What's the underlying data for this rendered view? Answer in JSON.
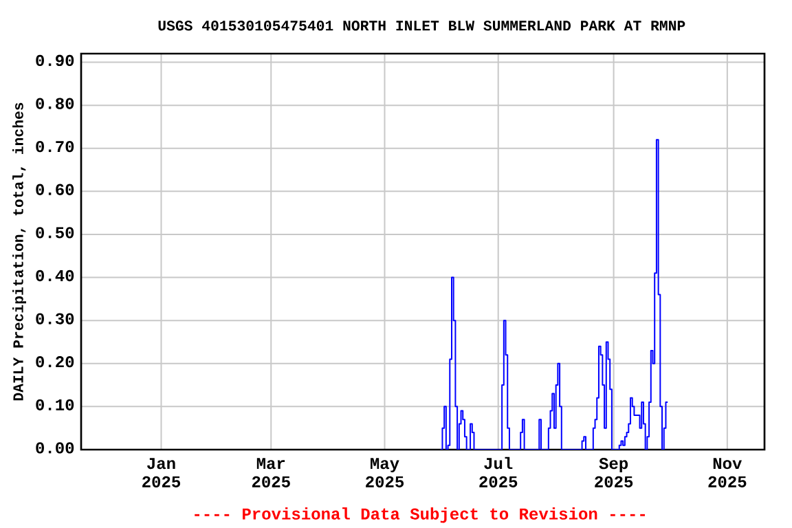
{
  "chart_data": {
    "type": "step",
    "title": "USGS 401530105475401 NORTH INLET BLW SUMMERLAND PARK AT RMNP",
    "ylabel": "DAILY Precipitation, total, inches",
    "annotations": [
      "---- Provisional Data Subject to Revision ----"
    ],
    "xlim": [
      "2024-11-19",
      "2025-11-21"
    ],
    "ylim": [
      0,
      0.92
    ],
    "xticks": [
      {
        "value": "2025-01-01",
        "label": "Jan 2025"
      },
      {
        "value": "2025-03-01",
        "label": "Mar 2025"
      },
      {
        "value": "2025-05-01",
        "label": "May 2025"
      },
      {
        "value": "2025-07-01",
        "label": "Jul 2025"
      },
      {
        "value": "2025-09-01",
        "label": "Sep 2025"
      },
      {
        "value": "2025-11-01",
        "label": "Nov 2025"
      }
    ],
    "yticks": [
      {
        "value": 0,
        "label": "0.00"
      },
      {
        "value": 0.1,
        "label": "0.10"
      },
      {
        "value": 0.2,
        "label": "0.20"
      },
      {
        "value": 0.3,
        "label": "0.30"
      },
      {
        "value": 0.4,
        "label": "0.40"
      },
      {
        "value": 0.5,
        "label": "0.50"
      },
      {
        "value": 0.6,
        "label": "0.60"
      },
      {
        "value": 0.7,
        "label": "0.70"
      },
      {
        "value": 0.8,
        "label": "0.80"
      },
      {
        "value": 0.9,
        "label": "0.90"
      }
    ],
    "grid": true,
    "series": [
      {
        "color": "#0000ff",
        "x": [
          "2025-05-31",
          "2025-06-01",
          "2025-06-02",
          "2025-06-03",
          "2025-06-04",
          "2025-06-05",
          "2025-06-06",
          "2025-06-07",
          "2025-06-08",
          "2025-06-09",
          "2025-06-10",
          "2025-06-11",
          "2025-06-12",
          "2025-06-13",
          "2025-06-14",
          "2025-06-16",
          "2025-06-17",
          "2025-06-18",
          "2025-07-03",
          "2025-07-04",
          "2025-07-05",
          "2025-07-06",
          "2025-07-07",
          "2025-07-13",
          "2025-07-14",
          "2025-07-15",
          "2025-07-23",
          "2025-07-24",
          "2025-07-28",
          "2025-07-29",
          "2025-07-30",
          "2025-07-31",
          "2025-08-01",
          "2025-08-02",
          "2025-08-03",
          "2025-08-04",
          "2025-08-15",
          "2025-08-16",
          "2025-08-17",
          "2025-08-21",
          "2025-08-22",
          "2025-08-23",
          "2025-08-24",
          "2025-08-25",
          "2025-08-26",
          "2025-08-27",
          "2025-08-28",
          "2025-08-29",
          "2025-08-30",
          "2025-08-31",
          "2025-09-04",
          "2025-09-05",
          "2025-09-06",
          "2025-09-07",
          "2025-09-08",
          "2025-09-09",
          "2025-09-10",
          "2025-09-11",
          "2025-09-12",
          "2025-09-15",
          "2025-09-16",
          "2025-09-17",
          "2025-09-18",
          "2025-09-19",
          "2025-09-20",
          "2025-09-21",
          "2025-09-22",
          "2025-09-23",
          "2025-09-24",
          "2025-09-25",
          "2025-09-26",
          "2025-09-27",
          "2025-09-28",
          "2025-09-29",
          "2025-09-30"
        ],
        "values": [
          0,
          0.05,
          0.1,
          0,
          0.01,
          0.21,
          0.4,
          0.3,
          0.1,
          0,
          0.06,
          0.09,
          0.07,
          0.03,
          0,
          0.06,
          0.04,
          0,
          0.15,
          0.3,
          0.22,
          0.05,
          0,
          0.04,
          0.07,
          0,
          0.07,
          0,
          0.05,
          0.09,
          0.13,
          0.05,
          0.15,
          0.2,
          0.1,
          0,
          0.02,
          0.03,
          0,
          0.05,
          0.07,
          0.12,
          0.24,
          0.22,
          0.15,
          0.05,
          0.25,
          0.21,
          0.14,
          0,
          0.01,
          0.02,
          0.01,
          0.03,
          0.04,
          0.06,
          0.12,
          0.1,
          0.08,
          0.05,
          0.11,
          0.06,
          0,
          0.03,
          0.11,
          0.23,
          0.2,
          0.41,
          0.72,
          0.36,
          0.1,
          0,
          0.05,
          0.11,
          0.11
        ]
      }
    ]
  }
}
